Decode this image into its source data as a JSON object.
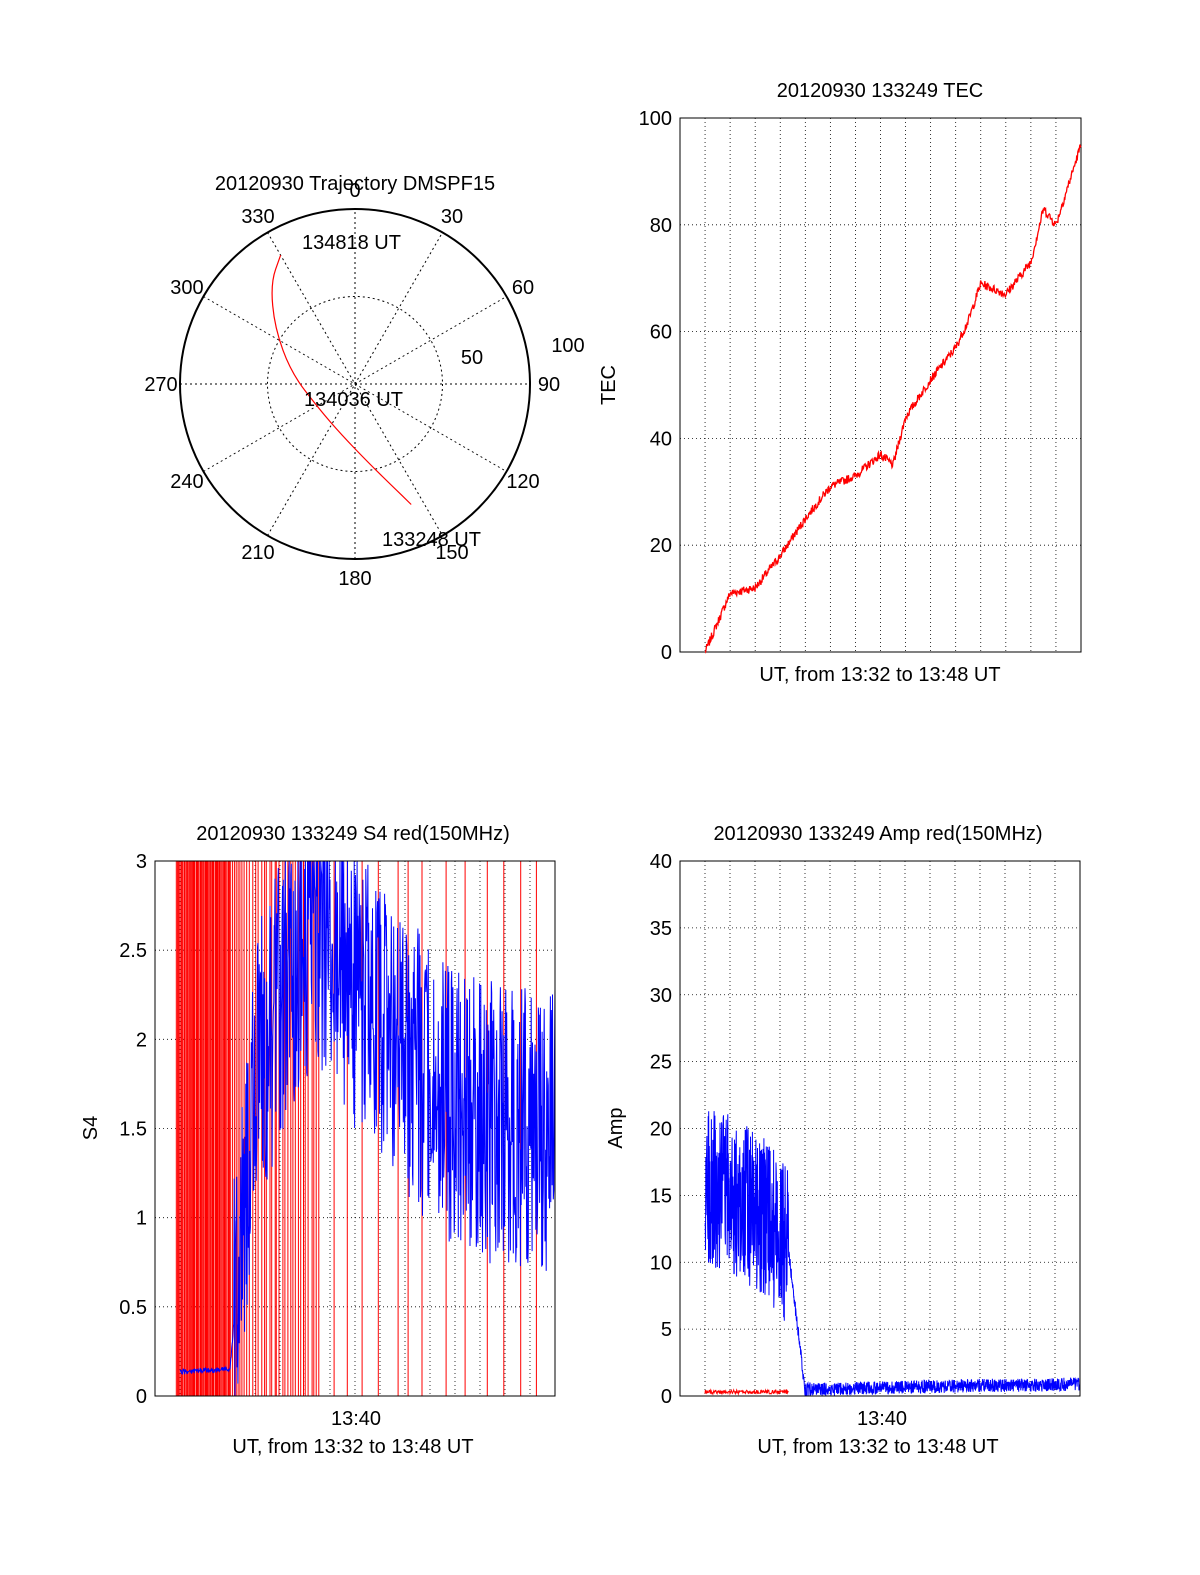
{
  "chart_data": [
    {
      "type": "polar",
      "title": "20120930 Trajectory DMSPF15",
      "angle_labels": [
        "0",
        "30",
        "60",
        "90",
        "120",
        "150",
        "180",
        "210",
        "240",
        "270",
        "300",
        "330"
      ],
      "radial_labels": [
        "50",
        "100"
      ],
      "rlim": [
        0,
        100
      ],
      "grid": true,
      "series": [
        {
          "color": "#ff0000",
          "points": [
            {
              "az": 155,
              "r": 76
            },
            {
              "az": 160,
              "r": 62
            },
            {
              "az": 170,
              "r": 46
            },
            {
              "az": 195,
              "r": 30
            },
            {
              "az": 235,
              "r": 25
            },
            {
              "az": 280,
              "r": 37
            },
            {
              "az": 305,
              "r": 56
            },
            {
              "az": 320,
              "r": 75
            },
            {
              "az": 330,
              "r": 85
            }
          ]
        }
      ],
      "annotations": [
        "134818 UT",
        "134036 UT",
        "133248 UT"
      ]
    },
    {
      "type": "line",
      "title": "20120930 133249 TEC",
      "xlabel": "UT, from 13:32 to 13:48 UT",
      "ylabel": "TEC",
      "xlim": [
        "13:32",
        "13:48"
      ],
      "ylim": [
        0,
        100
      ],
      "yticks": [
        "0",
        "20",
        "40",
        "60",
        "80",
        "100"
      ],
      "grid": true,
      "series": [
        {
          "color": "#ff0000",
          "x": [
            "13:33",
            "13:34",
            "13:35",
            "13:36",
            "13:37",
            "13:38",
            "13:39",
            "13:40",
            "13:40:30",
            "13:41",
            "13:42",
            "13:43",
            "13:43:30",
            "13:44",
            "13:45",
            "13:46",
            "13:46:30",
            "13:47",
            "13:48"
          ],
          "y": [
            0,
            11,
            12,
            18,
            25,
            31,
            33,
            37,
            35,
            44,
            51,
            57,
            62,
            69,
            67,
            73,
            83,
            80,
            95
          ]
        }
      ]
    },
    {
      "type": "line",
      "title": "20120930 133249 S4 red(150MHz)",
      "xlabel": "UT, from 13:32 to 13:48 UT",
      "ylabel": "S4",
      "xlim": [
        "13:32",
        "13:48"
      ],
      "ylim": [
        0,
        3
      ],
      "yticks": [
        "0",
        "0.5",
        "1",
        "1.5",
        "2",
        "2.5",
        "3"
      ],
      "xticks": [
        "13:40"
      ],
      "grid": true,
      "series": [
        {
          "color": "#ff0000",
          "note": "saturated spikes 0 to 3 from 13:32 to 13:47"
        },
        {
          "color": "#0000ff",
          "x": [
            "13:32",
            "13:35",
            "13:36",
            "13:38",
            "13:40",
            "13:42",
            "13:44",
            "13:46",
            "13:48"
          ],
          "y": [
            0.13,
            0.15,
            1.8,
            2.6,
            2.3,
            1.9,
            1.6,
            1.5,
            1.5
          ]
        }
      ]
    },
    {
      "type": "line",
      "title": "20120930 133249 Amp red(150MHz)",
      "xlabel": "UT, from 13:32 to 13:48 UT",
      "ylabel": "Amp",
      "xlim": [
        "13:32",
        "13:48"
      ],
      "ylim": [
        0,
        40
      ],
      "yticks": [
        "0",
        "5",
        "10",
        "15",
        "20",
        "25",
        "30",
        "35",
        "40"
      ],
      "xticks": [
        "13:40"
      ],
      "grid": true,
      "series": [
        {
          "color": "#ff0000",
          "x": [
            "13:33",
            "13:36:20"
          ],
          "y": [
            0.3,
            0.3
          ]
        },
        {
          "color": "#0000ff",
          "x": [
            "13:33",
            "13:34",
            "13:35",
            "13:36",
            "13:36:20",
            "13:37",
            "13:40",
            "13:42",
            "13:44",
            "13:46",
            "13:48"
          ],
          "y": [
            16,
            15,
            14,
            12,
            11,
            0.5,
            0.6,
            0.7,
            0.8,
            0.8,
            0.9
          ]
        }
      ]
    }
  ]
}
